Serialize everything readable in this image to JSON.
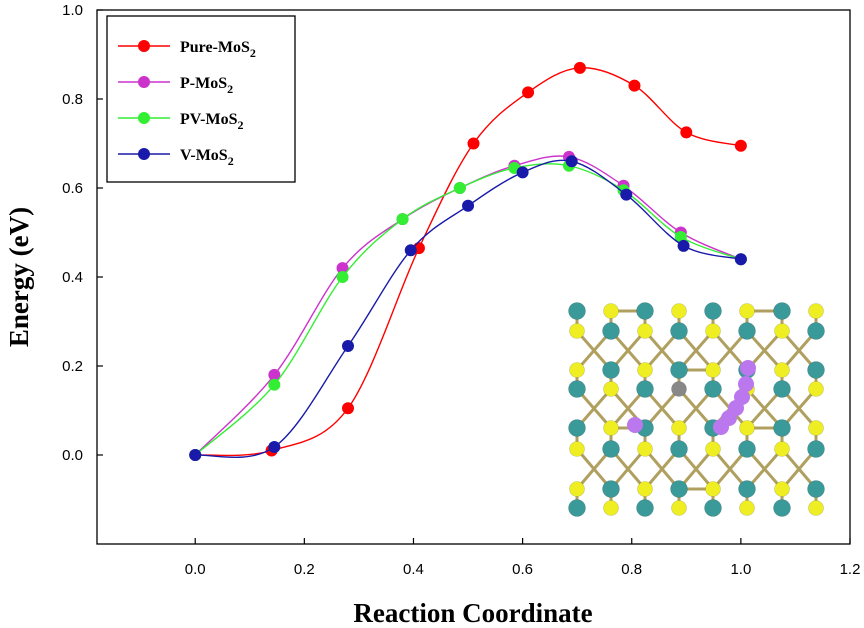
{
  "chart_data": {
    "type": "line",
    "xlabel": "Reaction Coordinate",
    "ylabel": "Energy (eV)",
    "xlim": [
      -0.18,
      1.2
    ],
    "ylim": [
      -0.2,
      1.0
    ],
    "xticks": [
      "0.0",
      "0.2",
      "0.4",
      "0.6",
      "0.8",
      "1.0",
      "1.2"
    ],
    "yticks": [
      "0.0",
      "0.2",
      "0.4",
      "0.6",
      "0.8",
      "1.0"
    ],
    "legend_position": "top-left",
    "grid": false,
    "series": [
      {
        "name": "Pure-MoS",
        "subscript": "2",
        "color": "#ff0000",
        "x": [
          0.0,
          0.14,
          0.28,
          0.41,
          0.51,
          0.61,
          0.705,
          0.805,
          0.9,
          1.0
        ],
        "y": [
          0.0,
          0.01,
          0.105,
          0.465,
          0.7,
          0.815,
          0.87,
          0.83,
          0.725,
          0.695
        ]
      },
      {
        "name": "P-MoS",
        "subscript": "2",
        "color": "#cc33cc",
        "x": [
          0.0,
          0.145,
          0.27,
          0.38,
          0.485,
          0.585,
          0.685,
          0.785,
          0.89,
          1.0
        ],
        "y": [
          0.0,
          0.18,
          0.42,
          0.53,
          0.6,
          0.65,
          0.67,
          0.605,
          0.5,
          0.44
        ]
      },
      {
        "name": "PV-MoS",
        "subscript": "2",
        "color": "#33ee33",
        "x": [
          0.0,
          0.145,
          0.27,
          0.38,
          0.485,
          0.585,
          0.685,
          0.785,
          0.89,
          1.0
        ],
        "y": [
          0.0,
          0.158,
          0.4,
          0.53,
          0.6,
          0.645,
          0.65,
          0.595,
          0.49,
          0.44
        ]
      },
      {
        "name": "V-MoS",
        "subscript": "2",
        "color": "#1a1aaa",
        "x": [
          0.0,
          0.145,
          0.28,
          0.395,
          0.5,
          0.6,
          0.69,
          0.79,
          0.895,
          1.0
        ],
        "y": [
          0.0,
          0.018,
          0.245,
          0.46,
          0.56,
          0.635,
          0.66,
          0.585,
          0.47,
          0.44
        ]
      }
    ]
  },
  "inset": {
    "atom_colors": {
      "mo": "#3a9a9a",
      "s": "#eeee22",
      "dopant": "#888888",
      "path": "#bb77ee",
      "bond": "#b0a060"
    }
  }
}
